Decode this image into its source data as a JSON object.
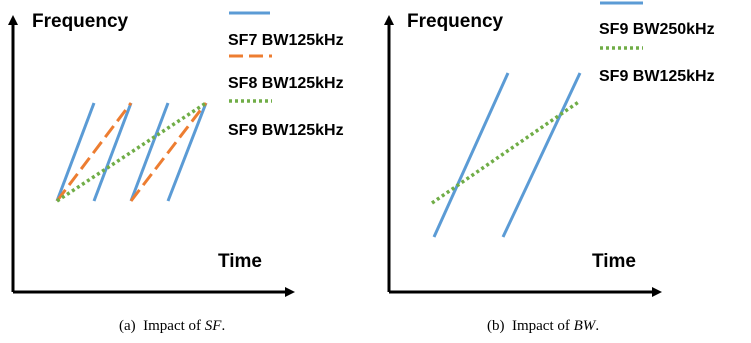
{
  "panel_a": {
    "y_axis_label": "Frequency",
    "x_axis_label": "Time",
    "legend": [
      {
        "label": "SF7 BW125kHz",
        "color": "#5b9bd5",
        "style": "solid"
      },
      {
        "label": "SF8 BW125kHz",
        "color": "#ed7d31",
        "style": "dashed"
      },
      {
        "label": "SF9 BW125kHz",
        "color": "#70ad47",
        "style": "dotted"
      }
    ],
    "caption": {
      "prefix": "(a)  Impact of ",
      "emph": "SF",
      "suffix": "."
    }
  },
  "panel_b": {
    "y_axis_label": "Frequency",
    "x_axis_label": "Time",
    "legend": [
      {
        "label": "SF9 BW250kHz",
        "color": "#5b9bd5",
        "style": "solid"
      },
      {
        "label": "SF9 BW125kHz",
        "color": "#70ad47",
        "style": "dotted"
      }
    ],
    "caption": {
      "prefix": "(b)  Impact of ",
      "emph": "BW",
      "suffix": "."
    }
  }
}
